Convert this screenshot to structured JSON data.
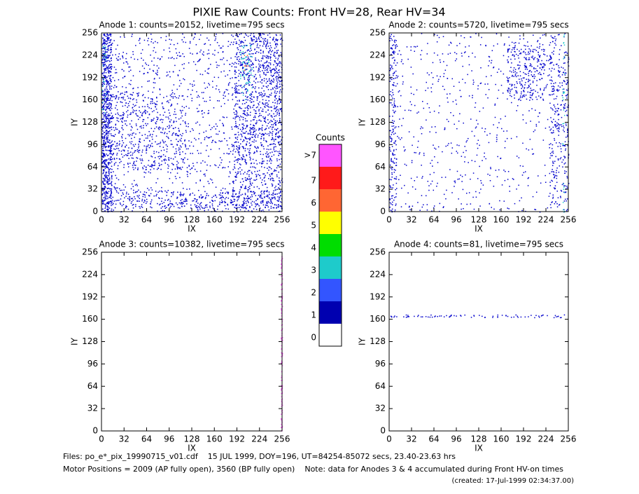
{
  "title": "PIXIE Raw Counts:  Front HV=28, Rear HV=34",
  "chart_data": [
    {
      "type": "heatmap",
      "title": "Anode 1: counts=20152, livetime=795 secs",
      "xlabel": "IX",
      "ylabel": "IY",
      "xlim": [
        0,
        256
      ],
      "ylim": [
        0,
        256
      ],
      "xticks": [
        0,
        32,
        64,
        96,
        128,
        160,
        192,
        224,
        256
      ],
      "yticks": [
        0,
        32,
        64,
        96,
        128,
        160,
        192,
        224,
        256
      ],
      "regions": [
        {
          "x": [
            0,
            256
          ],
          "y": [
            0,
            256
          ],
          "color": "#0000cc",
          "points": 1300
        },
        {
          "x": [
            0,
            14
          ],
          "y": [
            0,
            256
          ],
          "color": "#0000cc",
          "points": 650
        },
        {
          "x": [
            188,
            256
          ],
          "y": [
            100,
            256
          ],
          "color": "#0000cc",
          "points": 750
        },
        {
          "x": [
            185,
            256
          ],
          "y": [
            0,
            100
          ],
          "color": "#0000cc",
          "points": 300
        },
        {
          "x": [
            0,
            120
          ],
          "y": [
            60,
            170
          ],
          "color": "#0000cc",
          "points": 450
        },
        {
          "x": [
            0,
            256
          ],
          "y": [
            5,
            30
          ],
          "color": "#0000cc",
          "points": 300
        },
        {
          "x": [
            196,
            214
          ],
          "y": [
            160,
            240
          ],
          "color": "#22cccc",
          "points": 60
        },
        {
          "x": [
            0,
            6
          ],
          "y": [
            140,
            240
          ],
          "color": "#22cccc",
          "points": 25
        },
        {
          "x": [
            200,
            210
          ],
          "y": [
            200,
            230
          ],
          "color": "#ff6633",
          "points": 6
        }
      ]
    },
    {
      "type": "heatmap",
      "title": "Anode 2: counts=5720, livetime=795 secs",
      "xlabel": "IX",
      "ylabel": "IY",
      "xlim": [
        0,
        256
      ],
      "ylim": [
        0,
        256
      ],
      "xticks": [
        0,
        32,
        64,
        96,
        128,
        160,
        192,
        224,
        256
      ],
      "yticks": [
        0,
        32,
        64,
        96,
        128,
        160,
        192,
        224,
        256
      ],
      "regions": [
        {
          "x": [
            0,
            256
          ],
          "y": [
            0,
            256
          ],
          "color": "#0000cc",
          "points": 650
        },
        {
          "x": [
            168,
            222
          ],
          "y": [
            160,
            240
          ],
          "color": "#0000cc",
          "points": 260
        },
        {
          "x": [
            228,
            256
          ],
          "y": [
            0,
            256
          ],
          "color": "#0000cc",
          "points": 260
        },
        {
          "x": [
            0,
            10
          ],
          "y": [
            0,
            256
          ],
          "color": "#0000cc",
          "points": 160
        },
        {
          "x": [
            247,
            250
          ],
          "y": [
            0,
            256
          ],
          "color": "#22cccc",
          "points": 30
        }
      ]
    },
    {
      "type": "heatmap",
      "title": "Anode 3: counts=10382, livetime=795 secs",
      "xlabel": "IX",
      "ylabel": "IY",
      "xlim": [
        0,
        256
      ],
      "ylim": [
        0,
        256
      ],
      "xticks": [
        0,
        32,
        64,
        96,
        128,
        160,
        192,
        224,
        256
      ],
      "yticks": [
        0,
        32,
        64,
        96,
        128,
        160,
        192,
        224,
        256
      ],
      "regions": [
        {
          "x": [
            254,
            256
          ],
          "y": [
            0,
            256
          ],
          "color": "#ff55ff",
          "points": 120
        }
      ]
    },
    {
      "type": "heatmap",
      "title": "Anode 4: counts=81, livetime=795 secs",
      "xlabel": "IX",
      "ylabel": "IY",
      "xlim": [
        0,
        256
      ],
      "ylim": [
        0,
        256
      ],
      "xticks": [
        0,
        32,
        64,
        96,
        128,
        160,
        192,
        224,
        256
      ],
      "yticks": [
        0,
        32,
        64,
        96,
        128,
        160,
        192,
        224,
        256
      ],
      "regions": [
        {
          "x": [
            0,
            250
          ],
          "y": [
            163,
            167
          ],
          "color": "#0000cc",
          "points": 81
        }
      ]
    }
  ],
  "colorbar": {
    "title": "Counts",
    "levels": [
      {
        "label": "0",
        "color": "#ffffff"
      },
      {
        "label": "1",
        "color": "#0000b0"
      },
      {
        "label": "2",
        "color": "#3355ff"
      },
      {
        "label": "3",
        "color": "#1ecbcb"
      },
      {
        "label": "4",
        "color": "#00dd00"
      },
      {
        "label": "5",
        "color": "#ffff00"
      },
      {
        "label": "6",
        "color": "#ff6633"
      },
      {
        "label": "7",
        "color": "#ff1a1a"
      },
      {
        "label": ">7",
        "color": "#ff55ff"
      }
    ]
  },
  "footer": {
    "files": "Files: po_e*_pix_19990715_v01.cdf    15 JUL 1999, DOY=196, UT=84254-85072 secs, 23.40-23.63 hrs",
    "motor": "Motor Positions = 2009 (AP fully open), 3560 (BP fully open)    Note: data for Anodes 3 & 4 accumulated during Front HV-on times",
    "created": "(created: 17-Jul-1999 02:34:37.00)"
  }
}
